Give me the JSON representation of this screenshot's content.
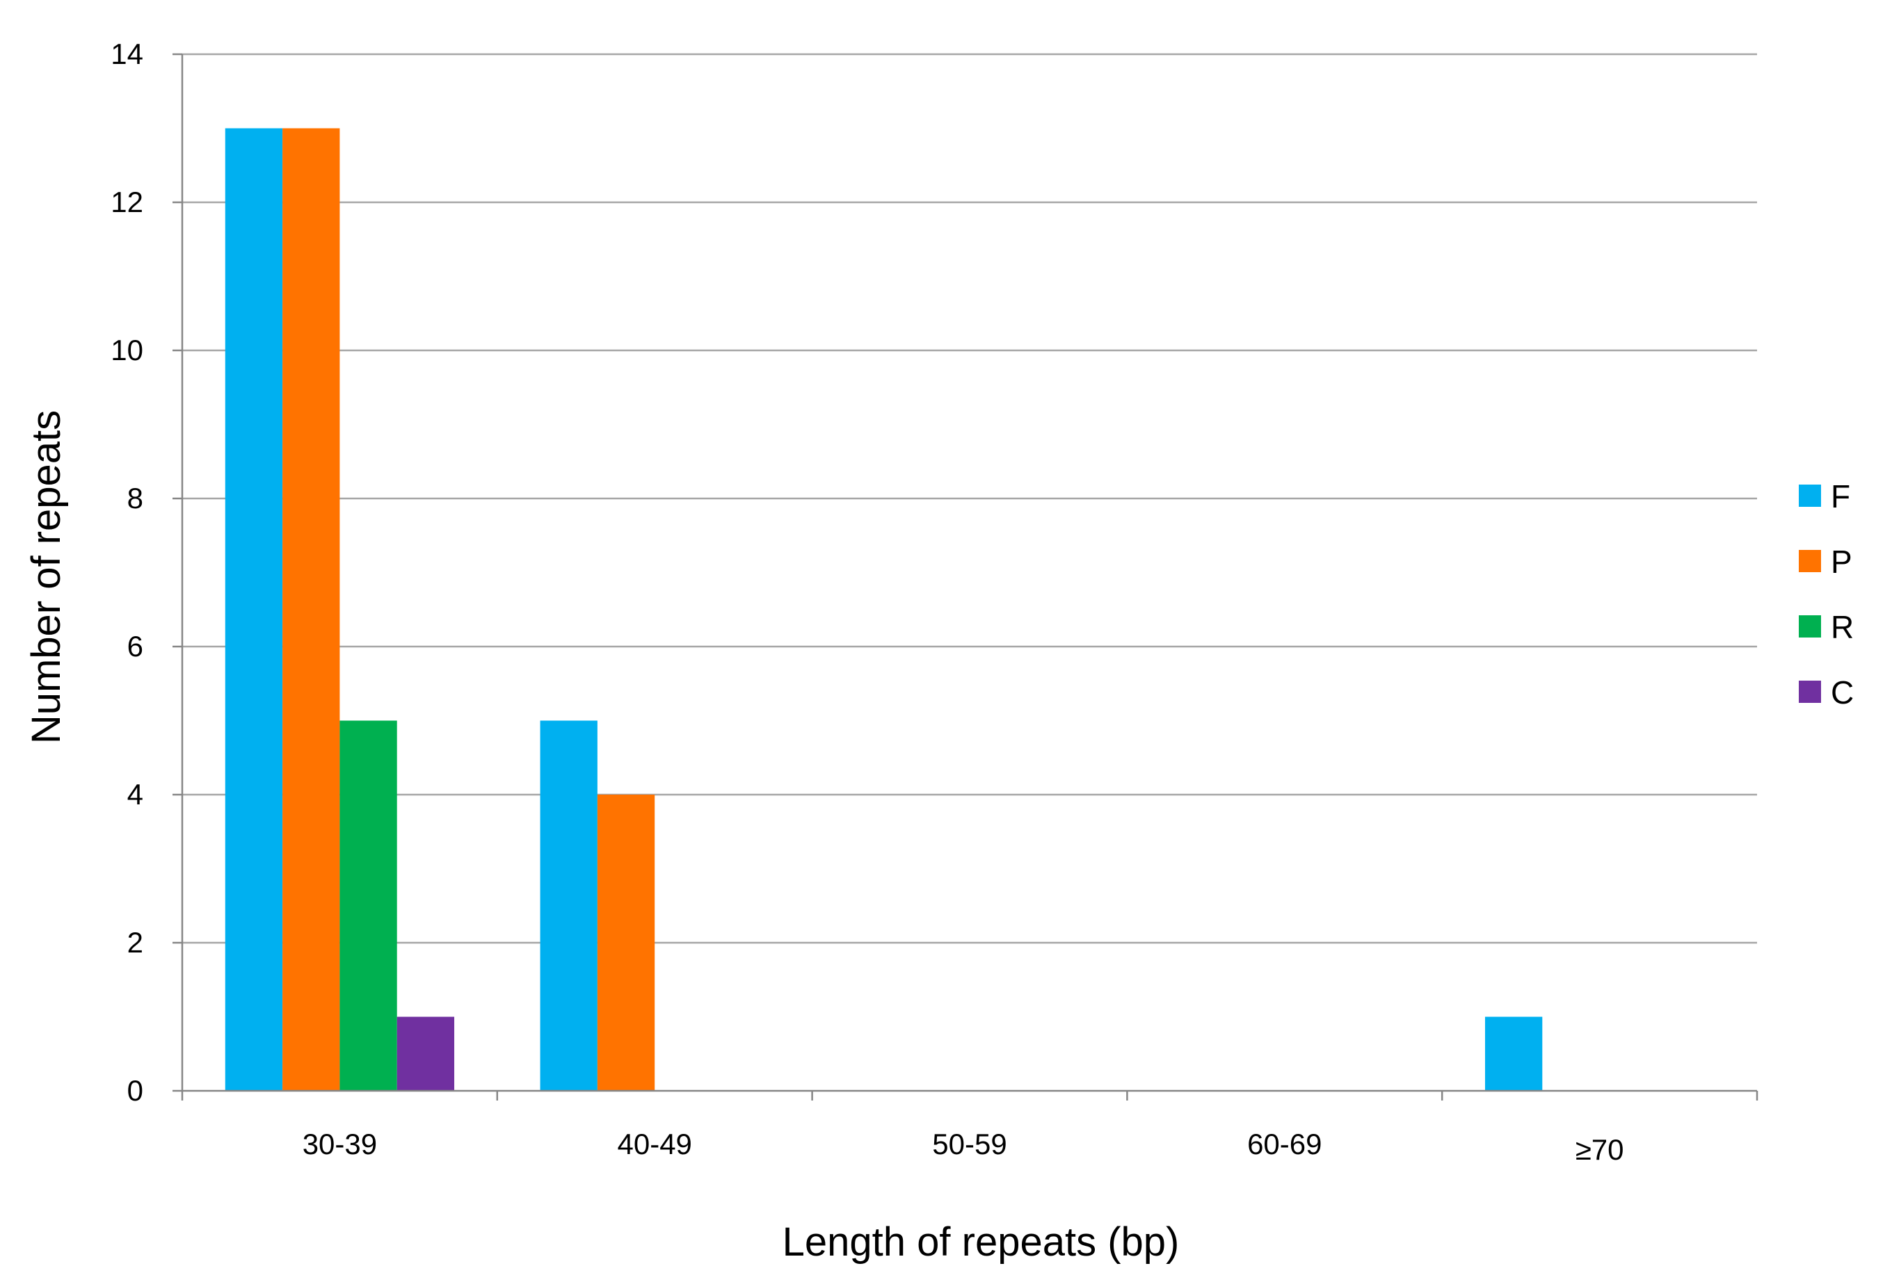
{
  "chart_data": {
    "type": "bar",
    "title": "",
    "xlabel": "Length of repeats (bp)",
    "ylabel": "Number of repeats",
    "categories": [
      "30-39",
      "40-49",
      "50-59",
      "60-69",
      "≥70"
    ],
    "series": [
      {
        "name": "F",
        "color": "#00B0F0",
        "values": [
          13,
          5,
          0,
          0,
          1
        ]
      },
      {
        "name": "P",
        "color": "#FF7300",
        "values": [
          13,
          4,
          0,
          0,
          0
        ]
      },
      {
        "name": "R",
        "color": "#00B050",
        "values": [
          5,
          0,
          0,
          0,
          0
        ]
      },
      {
        "name": "C",
        "color": "#7030A0",
        "values": [
          1,
          0,
          0,
          0,
          0
        ]
      }
    ],
    "ylim": [
      0,
      14
    ],
    "yticks": [
      0,
      2,
      4,
      6,
      8,
      10,
      12,
      14
    ],
    "grid": true,
    "legend_position": "right"
  }
}
